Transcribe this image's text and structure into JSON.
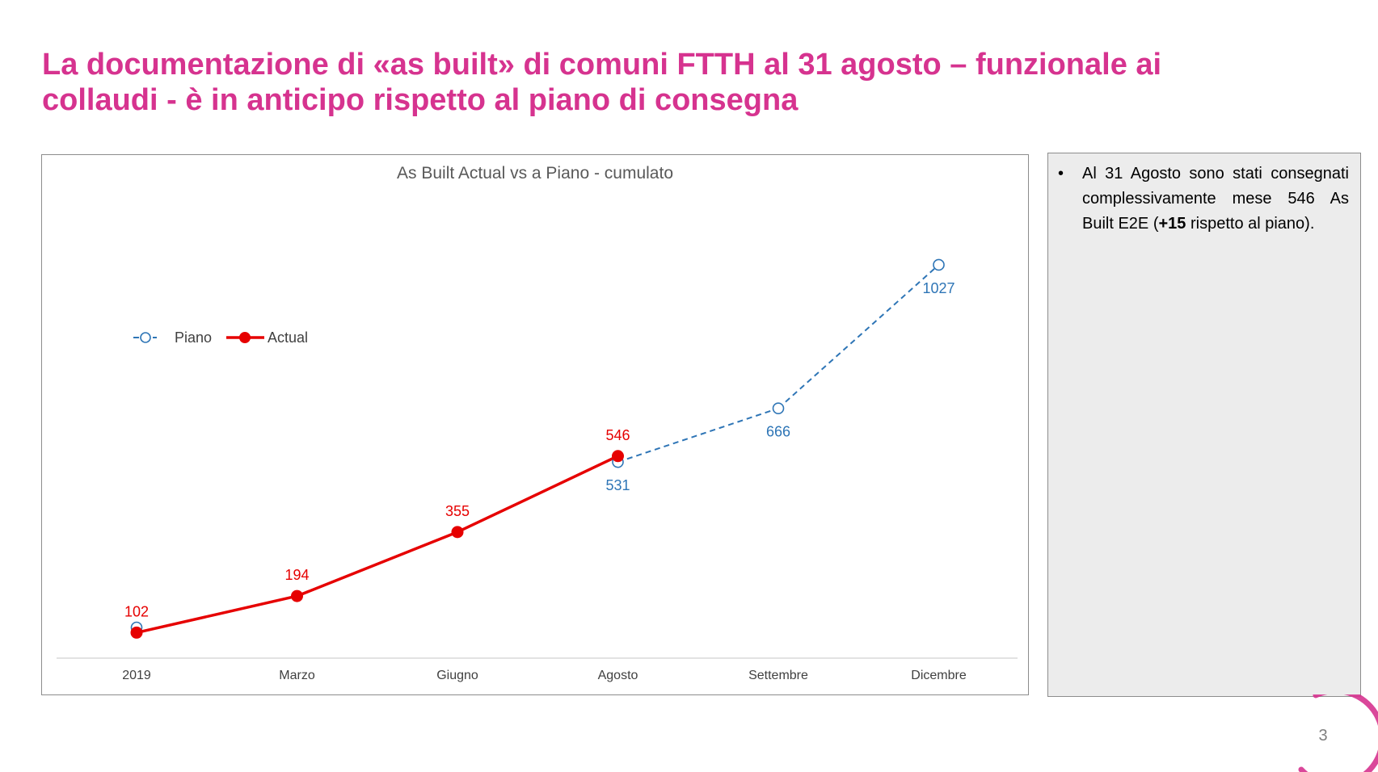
{
  "slide": {
    "title_line1": "La documentazione di «as built» di comuni FTTH al 31 agosto – funzionale ai",
    "title_line2": "collaudi - è in anticipo rispetto al piano di consegna",
    "page_number": "3"
  },
  "note": {
    "part1": "Al 31 Agosto sono stati consegnati complessivamente mese 546 As Built E2E (",
    "bold": "+15",
    "part2": " rispetto al piano)."
  },
  "chart_data": {
    "type": "line",
    "title": "As Built Actual vs a Piano - cumulato",
    "categories": [
      "2019",
      "Marzo",
      "Giugno",
      "Agosto",
      "Settembre",
      "Dicembre"
    ],
    "series": [
      {
        "name": "Piano",
        "values": [
          115,
          null,
          null,
          531,
          666,
          1027
        ],
        "labels": [
          null,
          null,
          null,
          "531",
          "666",
          "1027"
        ],
        "color": "#2e75b6",
        "style": "dashed",
        "marker": "open-circle"
      },
      {
        "name": "Actual",
        "values": [
          102,
          194,
          355,
          546,
          null,
          null
        ],
        "labels": [
          "102",
          "194",
          "355",
          "546",
          null,
          null
        ],
        "color": "#e60000",
        "style": "solid",
        "marker": "filled-circle"
      }
    ],
    "ylim": [
      50,
      1100
    ],
    "grid": false,
    "legend_position": "left"
  },
  "colors": {
    "title": "#d6338f",
    "piano": "#2e75b6",
    "actual": "#e60000",
    "note_background": "#ececec"
  }
}
